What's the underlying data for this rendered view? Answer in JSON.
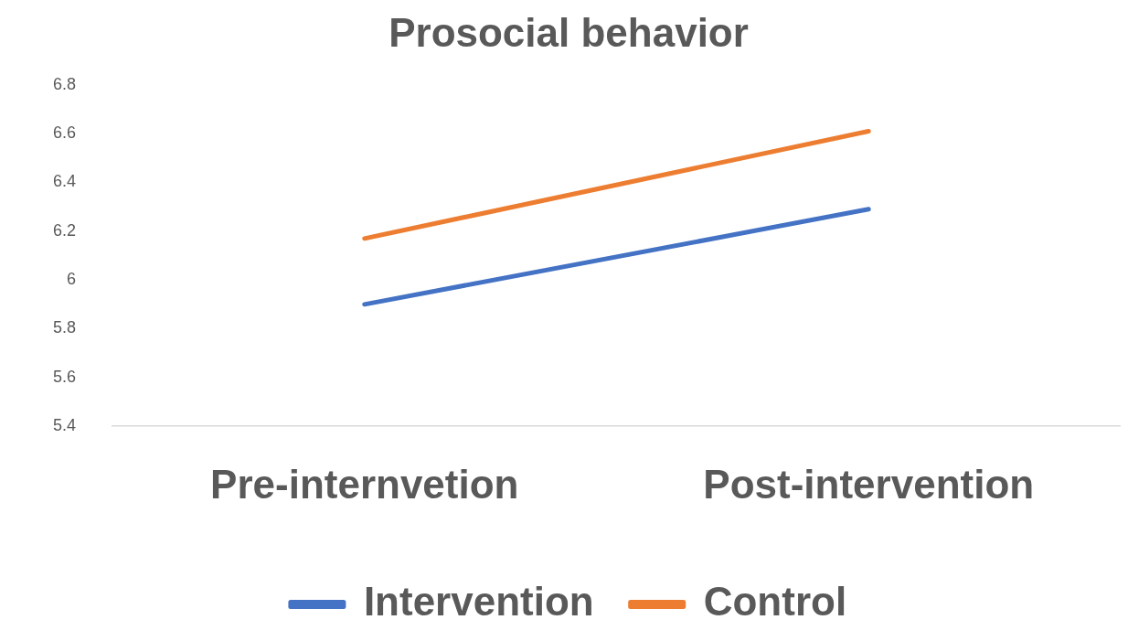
{
  "chart_data": {
    "type": "line",
    "title": "Prosocial behavior",
    "categories": [
      "Pre-internvetion",
      "Post-intervention"
    ],
    "series": [
      {
        "name": "Intervention",
        "color": "#4472c4",
        "values": [
          5.9,
          6.29
        ]
      },
      {
        "name": "Control",
        "color": "#ed7d31",
        "values": [
          6.17,
          6.61
        ]
      }
    ],
    "ylim": [
      5.4,
      6.8
    ],
    "yticks": [
      5.4,
      5.6,
      5.8,
      6,
      6.2,
      6.4,
      6.6,
      6.8
    ],
    "grid": false,
    "legend": "bottom",
    "marker": "none",
    "line_style": "solid"
  }
}
